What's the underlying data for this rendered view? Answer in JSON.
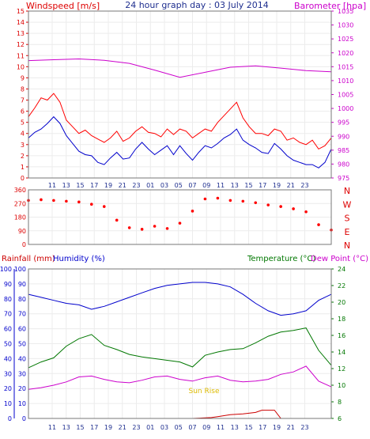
{
  "chart_data": [
    {
      "type": "line",
      "title": "24 hour graph day : 03 July 2014",
      "left_axis_label": "Windspeed [m/s]",
      "right_axis_label": "Barometer [hpa]",
      "ylim_left": [
        0,
        15
      ],
      "ylim_right": [
        975,
        1035
      ],
      "left_ticks": [
        0,
        1,
        2,
        3,
        4,
        5,
        6,
        7,
        8,
        9,
        10,
        11,
        12,
        13,
        14,
        15
      ],
      "right_ticks": [
        975,
        980,
        985,
        990,
        995,
        1000,
        1005,
        1010,
        1015,
        1020,
        1025,
        1030,
        1035
      ],
      "x_tick_labels": [
        "11",
        "13",
        "15",
        "17",
        "19",
        "21",
        "23",
        "01",
        "03",
        "05",
        "07",
        "09",
        "11",
        "13",
        "15",
        "17",
        "19",
        "21",
        "23"
      ],
      "grid": true,
      "series": [
        {
          "name": "Windspeed",
          "color": "#ff0000",
          "axis": "left",
          "x": [
            0,
            1,
            2,
            3,
            4,
            5,
            6,
            7,
            8,
            9,
            10,
            11,
            12,
            13,
            14,
            15,
            16,
            17,
            18,
            19,
            20,
            21,
            22,
            23,
            24,
            25,
            26,
            27,
            28,
            29,
            30,
            31,
            32,
            33,
            34,
            35,
            36,
            37,
            38,
            39,
            40,
            41,
            42,
            43,
            44,
            45,
            46,
            47,
            48
          ],
          "values": [
            5.5,
            6.3,
            7.2,
            7.0,
            7.6,
            6.8,
            5.2,
            4.6,
            4.0,
            4.3,
            3.8,
            3.5,
            3.2,
            3.6,
            4.2,
            3.3,
            3.6,
            4.2,
            4.6,
            4.1,
            4.0,
            3.7,
            4.4,
            3.9,
            4.4,
            4.2,
            3.6,
            4.0,
            4.4,
            4.2,
            5.0,
            5.6,
            6.2,
            6.8,
            5.4,
            4.6,
            4.0,
            4.0,
            3.8,
            4.4,
            4.2,
            3.4,
            3.6,
            3.2,
            3.0,
            3.4,
            2.6,
            2.9,
            3.6
          ]
        },
        {
          "name": "Gust",
          "color": "#0000cc",
          "axis": "left",
          "x": [
            0,
            1,
            2,
            3,
            4,
            5,
            6,
            7,
            8,
            9,
            10,
            11,
            12,
            13,
            14,
            15,
            16,
            17,
            18,
            19,
            20,
            21,
            22,
            23,
            24,
            25,
            26,
            27,
            28,
            29,
            30,
            31,
            32,
            33,
            34,
            35,
            36,
            37,
            38,
            39,
            40,
            41,
            42,
            43,
            44,
            45,
            46,
            47,
            48
          ],
          "values": [
            3.6,
            4.1,
            4.4,
            4.9,
            5.5,
            4.9,
            3.8,
            3.1,
            2.4,
            2.1,
            2.0,
            1.4,
            1.2,
            1.8,
            2.3,
            1.7,
            1.8,
            2.6,
            3.2,
            2.6,
            2.1,
            2.5,
            2.9,
            2.1,
            2.9,
            2.2,
            1.6,
            2.3,
            2.9,
            2.7,
            3.1,
            3.6,
            3.9,
            4.4,
            3.4,
            3.0,
            2.7,
            2.3,
            2.2,
            3.1,
            2.6,
            2.0,
            1.6,
            1.4,
            1.2,
            1.2,
            0.9,
            1.4,
            2.6
          ]
        },
        {
          "name": "Barometer",
          "color": "#cc00cc",
          "axis": "right",
          "x": [
            0,
            4,
            8,
            12,
            16,
            20,
            24,
            28,
            32,
            36,
            40,
            44,
            48
          ],
          "values": [
            1017.2,
            1017.5,
            1017.8,
            1017.3,
            1016.2,
            1013.8,
            1011.2,
            1013.0,
            1014.8,
            1015.3,
            1014.5,
            1013.6,
            1013.2
          ]
        }
      ]
    },
    {
      "type": "scatter",
      "ylim": [
        0,
        360
      ],
      "y_ticks": [
        0,
        90,
        180,
        270,
        360
      ],
      "right_labels": [
        "N",
        "W",
        "S",
        "E",
        "N"
      ],
      "series": [
        {
          "name": "Wind direction",
          "color": "#ff0000",
          "x": [
            0,
            2,
            4,
            6,
            8,
            10,
            12,
            14,
            16,
            18,
            20,
            22,
            24,
            26,
            28,
            30,
            32,
            34,
            36,
            38,
            40,
            42,
            44,
            46,
            48
          ],
          "values": [
            290,
            295,
            290,
            285,
            280,
            265,
            250,
            160,
            110,
            100,
            120,
            105,
            140,
            220,
            300,
            305,
            290,
            285,
            275,
            260,
            250,
            235,
            215,
            130,
            95
          ]
        }
      ]
    },
    {
      "type": "line",
      "left_axis_label_1": "Rainfall (mm)",
      "left_axis_label_2": "Humidity (%)",
      "right_axis_label_1": "Temperature (°C)",
      "right_axis_label_2": "Dew Point (°C)",
      "annotation": "Sun Rise",
      "ylim_rain": [
        0,
        100
      ],
      "ylim_hum": [
        0,
        100
      ],
      "ylim_temp": [
        6,
        24
      ],
      "rain_ticks": [
        0,
        10,
        20,
        30,
        40,
        50,
        60,
        70,
        80,
        90,
        100
      ],
      "temp_ticks": [
        6,
        8,
        10,
        12,
        14,
        16,
        18,
        20,
        22,
        24
      ],
      "x_tick_labels": [
        "11",
        "13",
        "15",
        "17",
        "19",
        "21",
        "23",
        "01",
        "03",
        "05",
        "07",
        "09",
        "11",
        "13",
        "15",
        "17",
        "19",
        "21",
        "23"
      ],
      "grid": true,
      "series": [
        {
          "name": "Humidity",
          "color": "#0000cc",
          "axis": "humidity",
          "x": [
            0,
            2,
            4,
            6,
            8,
            10,
            12,
            14,
            16,
            18,
            20,
            22,
            24,
            26,
            28,
            30,
            32,
            34,
            36,
            38,
            40,
            42,
            44,
            46,
            48
          ],
          "values": [
            83,
            81,
            79,
            77,
            76,
            73,
            75,
            78,
            81,
            84,
            87,
            89,
            90,
            91,
            91,
            90,
            88,
            83,
            77,
            72,
            69,
            70,
            72,
            79,
            83
          ]
        },
        {
          "name": "Temperature",
          "color": "#007700",
          "axis": "temp",
          "x": [
            0,
            2,
            4,
            6,
            8,
            10,
            12,
            14,
            16,
            18,
            20,
            22,
            24,
            26,
            28,
            30,
            32,
            34,
            36,
            38,
            40,
            42,
            44,
            46,
            48
          ],
          "values": [
            12.1,
            12.8,
            13.3,
            14.7,
            15.6,
            16.1,
            14.8,
            14.3,
            13.7,
            13.4,
            13.2,
            13.0,
            12.8,
            12.2,
            13.6,
            14.0,
            14.3,
            14.4,
            15.1,
            15.9,
            16.4,
            16.6,
            16.9,
            14.2,
            12.4
          ]
        },
        {
          "name": "Dew Point",
          "color": "#cc00cc",
          "axis": "temp",
          "x": [
            0,
            2,
            4,
            6,
            8,
            10,
            12,
            14,
            16,
            18,
            20,
            22,
            24,
            26,
            28,
            30,
            32,
            34,
            36,
            38,
            40,
            42,
            44,
            46,
            48
          ],
          "values": [
            9.5,
            9.7,
            10.0,
            10.4,
            11.0,
            11.1,
            10.7,
            10.4,
            10.3,
            10.6,
            11.0,
            11.1,
            10.7,
            10.5,
            10.9,
            11.1,
            10.6,
            10.4,
            10.5,
            10.7,
            11.3,
            11.6,
            12.3,
            10.5,
            9.8
          ]
        },
        {
          "name": "Rainfall",
          "color": "#cc0000",
          "axis": "rain",
          "x": [
            0,
            26,
            29,
            30,
            32,
            34,
            36,
            37,
            38,
            39,
            40,
            48
          ],
          "values": [
            0,
            0,
            0.6,
            1.2,
            2.5,
            3.0,
            4.0,
            5.5,
            5.5,
            5.5,
            0,
            0
          ]
        }
      ]
    }
  ]
}
